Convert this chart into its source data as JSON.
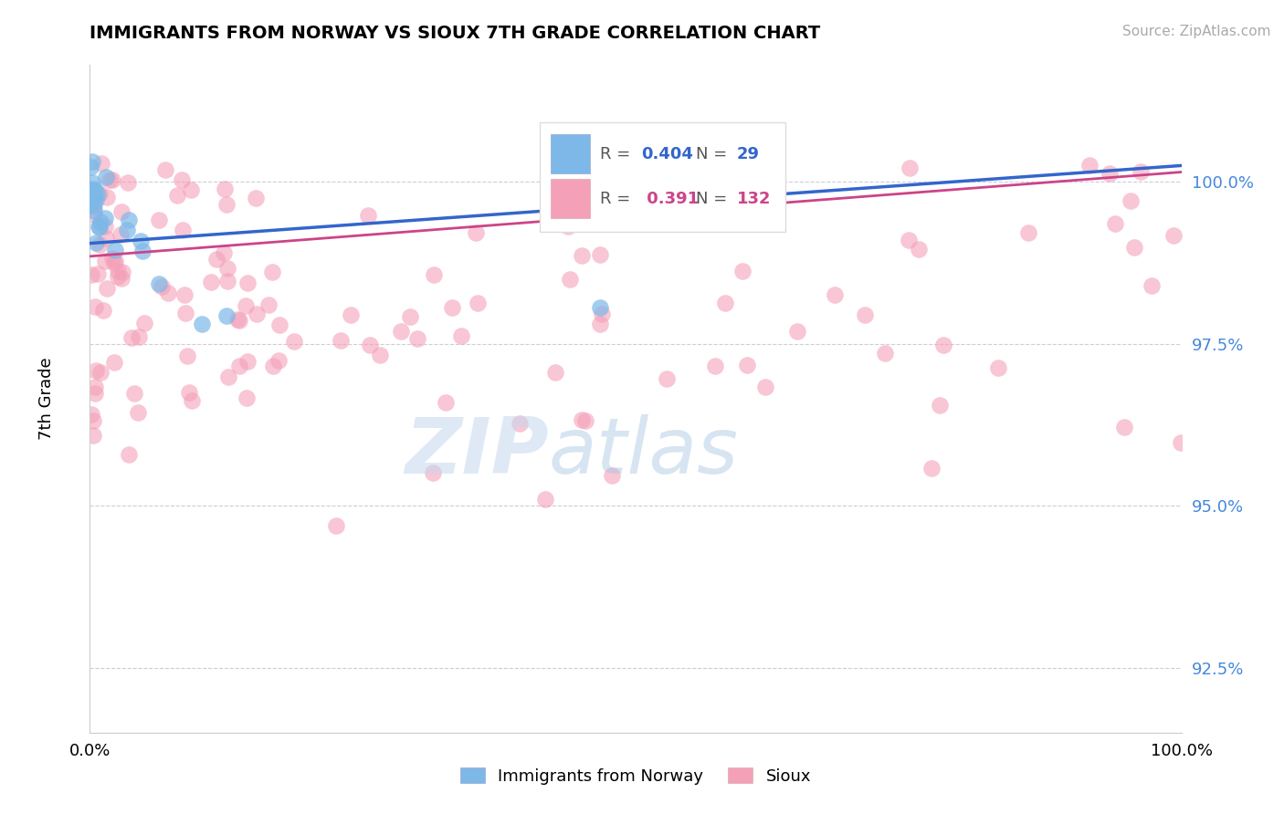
{
  "title": "IMMIGRANTS FROM NORWAY VS SIOUX 7TH GRADE CORRELATION CHART",
  "source_text": "Source: ZipAtlas.com",
  "ylabel": "7th Grade",
  "xmin": 0.0,
  "xmax": 100.0,
  "ymin": 91.5,
  "ymax": 101.8,
  "yticks": [
    92.5,
    95.0,
    97.5,
    100.0
  ],
  "ytick_labels": [
    "92.5%",
    "95.0%",
    "97.5%",
    "100.0%"
  ],
  "blue_R": 0.404,
  "blue_N": 29,
  "pink_R": 0.391,
  "pink_N": 132,
  "blue_color": "#7db8e8",
  "pink_color": "#f4a0b8",
  "blue_line_color": "#3366cc",
  "pink_line_color": "#cc4488",
  "blue_line_start_y": 99.05,
  "blue_line_end_y": 100.25,
  "pink_line_start_y": 98.85,
  "pink_line_end_y": 100.15,
  "watermark_zip": "ZIP",
  "watermark_atlas": "atlas",
  "legend_r_color": "#3366cc",
  "legend_r2_color": "#cc4488",
  "legend_label_color": "#555555",
  "ytick_color": "#4488dd",
  "source_color": "#aaaaaa"
}
